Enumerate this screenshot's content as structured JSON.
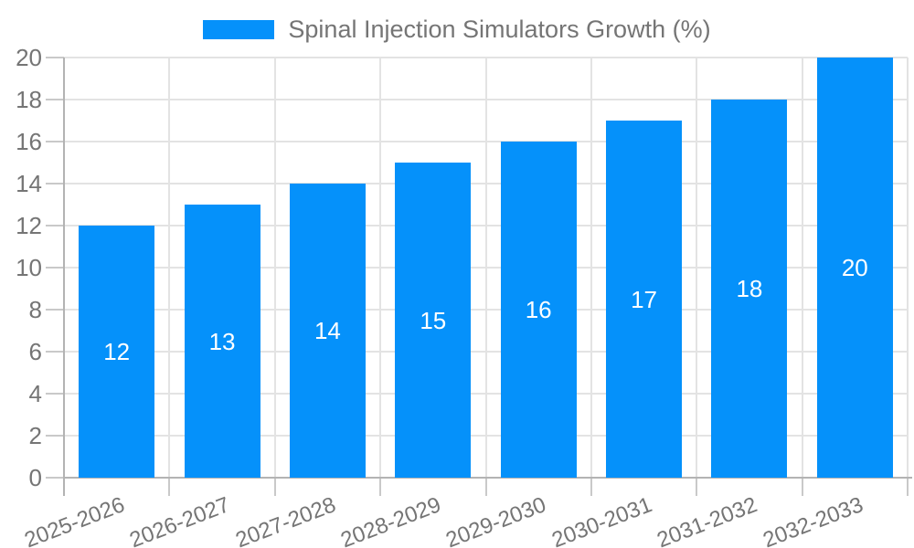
{
  "legend": {
    "label": "Spinal Injection Simulators Growth (%)"
  },
  "chart_data": {
    "type": "bar",
    "title": "",
    "series_name": "Spinal Injection Simulators Growth (%)",
    "categories": [
      "2025-2026",
      "2026-2027",
      "2027-2028",
      "2028-2029",
      "2029-2030",
      "2030-2031",
      "2031-2032",
      "2032-2033"
    ],
    "values": [
      12,
      13,
      14,
      15,
      16,
      17,
      18,
      20
    ],
    "data_labels": [
      12,
      13,
      14,
      15,
      16,
      17,
      18,
      20
    ],
    "data_label_position": "inside-center",
    "ylim": [
      0,
      20
    ],
    "ytick_step": 2,
    "yticks": [
      0,
      2,
      4,
      6,
      8,
      10,
      12,
      14,
      16,
      18,
      20
    ],
    "grid": "both",
    "legend_position": "top-center",
    "x_label_rotation_deg": -21,
    "colors": {
      "bar": "#0591fa",
      "grid": "#e3e3e3",
      "axis": "#b3b3b3",
      "tick": "#c9c9c9",
      "tick_label": "#757575",
      "data_label": "#ffffff",
      "legend_text": "#757575"
    }
  }
}
